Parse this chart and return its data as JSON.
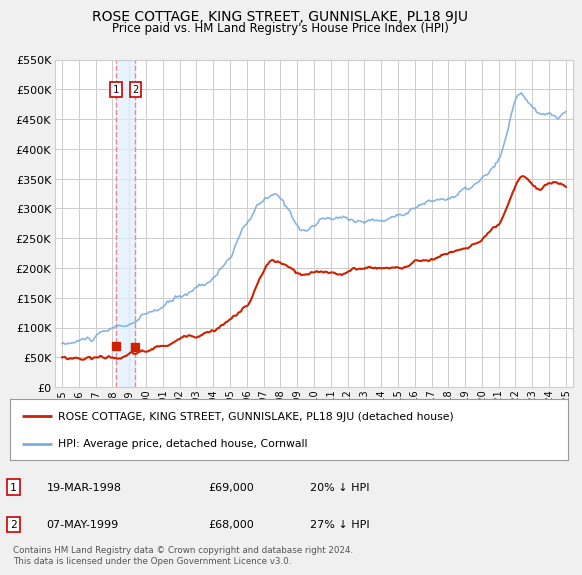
{
  "title": "ROSE COTTAGE, KING STREET, GUNNISLAKE, PL18 9JU",
  "subtitle": "Price paid vs. HM Land Registry's House Price Index (HPI)",
  "legend_line1": "ROSE COTTAGE, KING STREET, GUNNISLAKE, PL18 9JU (detached house)",
  "legend_line2": "HPI: Average price, detached house, Cornwall",
  "footer": "Contains HM Land Registry data © Crown copyright and database right 2024.\nThis data is licensed under the Open Government Licence v3.0.",
  "transactions": [
    {
      "num": 1,
      "date": "19-MAR-1998",
      "price": "£69,000",
      "hpi": "20% ↓ HPI",
      "year": 1998.21
    },
    {
      "num": 2,
      "date": "07-MAY-1999",
      "price": "£68,000",
      "hpi": "27% ↓ HPI",
      "year": 1999.37
    }
  ],
  "transaction_prices": [
    69000,
    68000
  ],
  "ylim": [
    0,
    550000
  ],
  "yticks": [
    0,
    50000,
    100000,
    150000,
    200000,
    250000,
    300000,
    350000,
    400000,
    450000,
    500000,
    550000
  ],
  "ytick_labels": [
    "£0",
    "£50K",
    "£100K",
    "£150K",
    "£200K",
    "£250K",
    "£300K",
    "£350K",
    "£400K",
    "£450K",
    "£500K",
    "£550K"
  ],
  "hpi_color": "#7aadde",
  "hpi_fill_color": "#c8dff2",
  "price_color": "#cc2200",
  "marker_color": "#cc2200",
  "vline_color": "#ee8888",
  "vfill_color": "#ddeeff",
  "bg_color": "#f0f0f0",
  "plot_bg_color": "#ffffff",
  "grid_color": "#cccccc",
  "hpi_linewidth": 1.2,
  "price_linewidth": 1.5
}
